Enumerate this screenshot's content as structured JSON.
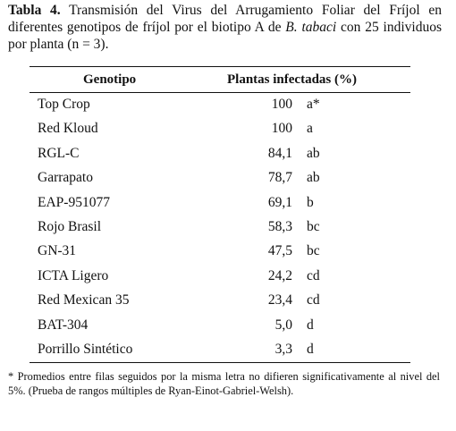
{
  "caption": {
    "label": "Tabla 4.",
    "text_before_italic": " Transmisión del Virus del Arrugamiento Foliar del Fríjol en diferentes genotipos de fríjol por el biotipo A de ",
    "italic": "B. tabaci",
    "text_after_italic": " con 25 individuos por planta (n = 3)."
  },
  "table": {
    "headers": [
      "Genotipo",
      "Plantas infectadas (%)"
    ],
    "rows": [
      {
        "genotype": "Top Crop",
        "value": "100",
        "letter": "a*"
      },
      {
        "genotype": "Red Kloud",
        "value": "100",
        "letter": "a"
      },
      {
        "genotype": "RGL-C",
        "value": "84,1",
        "letter": "ab"
      },
      {
        "genotype": "Garrapato",
        "value": "78,7",
        "letter": "ab"
      },
      {
        "genotype": "EAP-951077",
        "value": "69,1",
        "letter": "b"
      },
      {
        "genotype": "Rojo Brasil",
        "value": "58,3",
        "letter": "bc"
      },
      {
        "genotype": "GN-31",
        "value": "47,5",
        "letter": "bc"
      },
      {
        "genotype": "ICTA Ligero",
        "value": "24,2",
        "letter": "cd"
      },
      {
        "genotype": "Red Mexican 35",
        "value": "23,4",
        "letter": "cd"
      },
      {
        "genotype": "BAT-304",
        "value": "5,0",
        "letter": "d"
      },
      {
        "genotype": "Porrillo Sintético",
        "value": "3,3",
        "letter": "d"
      }
    ]
  },
  "footnote": "* Promedios entre filas seguidos por la misma letra no difieren significativamente al nivel del 5%. (Prueba de rangos múltiples de Ryan-Einot-Gabriel-Welsh)."
}
